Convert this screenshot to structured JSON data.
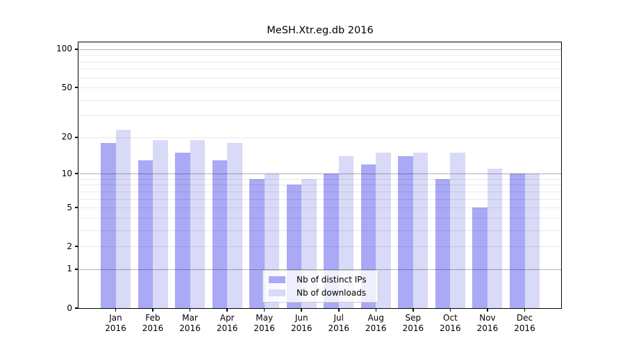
{
  "chart_data": {
    "type": "bar",
    "title": "MeSH.Xtr.eg.db 2016",
    "x_months": [
      "Jan",
      "Feb",
      "Mar",
      "Apr",
      "May",
      "Jun",
      "Jul",
      "Aug",
      "Sep",
      "Oct",
      "Nov",
      "Dec"
    ],
    "x_year": "2016",
    "categories": [
      "Jan 2016",
      "Feb 2016",
      "Mar 2016",
      "Apr 2016",
      "May 2016",
      "Jun 2016",
      "Jul 2016",
      "Aug 2016",
      "Sep 2016",
      "Oct 2016",
      "Nov 2016",
      "Dec 2016"
    ],
    "series": [
      {
        "name": "Nb of distinct IPs",
        "color": "#a9a9f5",
        "values": [
          18,
          13,
          15,
          13,
          9,
          8,
          10,
          12,
          14,
          9,
          5,
          10
        ]
      },
      {
        "name": "Nb of downloads",
        "color": "#d9d9f8",
        "values": [
          23,
          19,
          19,
          18,
          10,
          9,
          14,
          15,
          15,
          15,
          11,
          10
        ]
      }
    ],
    "yscale": "log1p",
    "ylim": [
      0,
      113
    ],
    "y_ticks": [
      0,
      1,
      2,
      5,
      10,
      20,
      50,
      100
    ],
    "grid_major": [
      1,
      10,
      100
    ],
    "grid_minor": [
      2,
      3,
      4,
      5,
      6,
      7,
      8,
      9,
      20,
      30,
      40,
      50,
      60,
      70,
      80,
      90
    ],
    "grid_major_color": "#b2b2b2",
    "grid_minor_color": "#ebebeb",
    "legend_position": "inside-bottom-center",
    "xlabel": "",
    "ylabel": ""
  }
}
